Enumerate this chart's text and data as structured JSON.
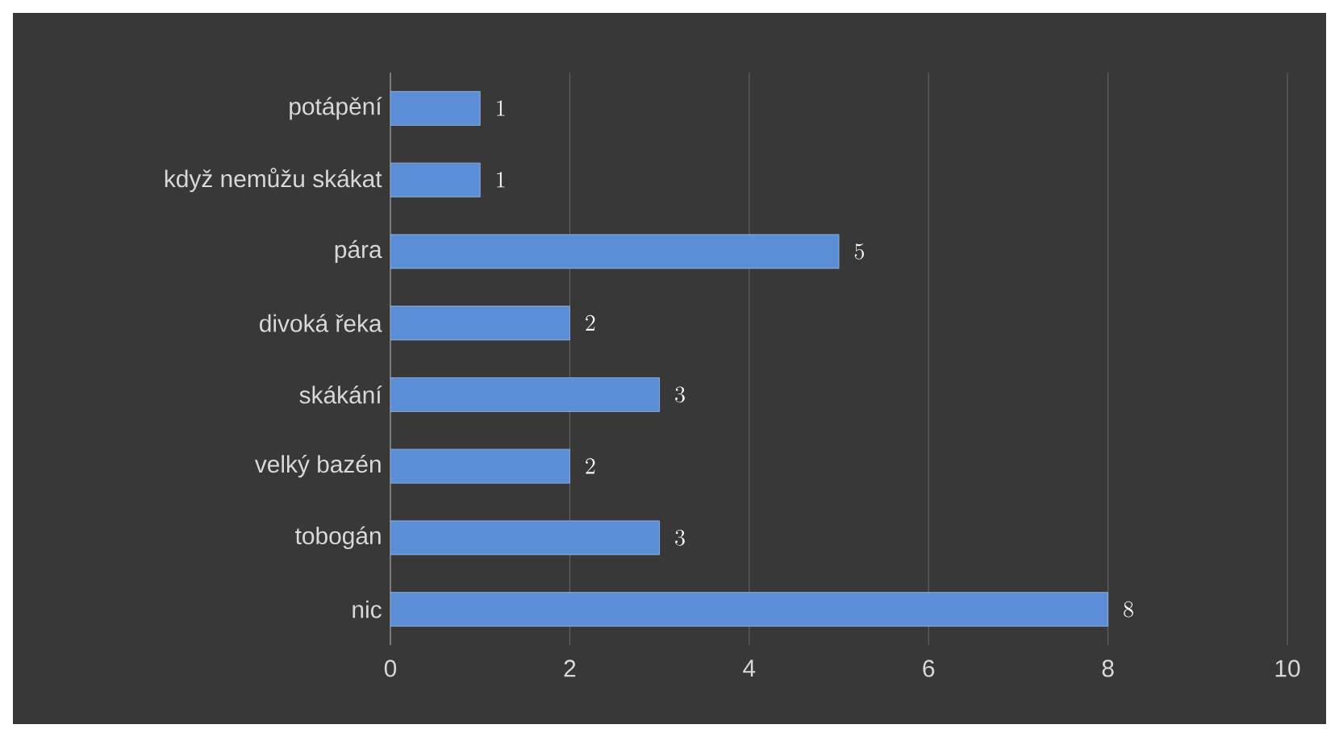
{
  "chart_data": {
    "type": "bar",
    "orientation": "horizontal",
    "categories": [
      "potápění",
      "když nemůžu skákat",
      "pára",
      "divoká řeka",
      "skákání",
      "velký bazén",
      "tobogán",
      "nic"
    ],
    "values": [
      1,
      1,
      5,
      2,
      3,
      2,
      3,
      8
    ],
    "color": "#5b8ed6",
    "xlim": [
      0,
      10
    ],
    "xticks": [
      0,
      2,
      4,
      6,
      8,
      10
    ],
    "grid": "x",
    "data_labels": true
  }
}
